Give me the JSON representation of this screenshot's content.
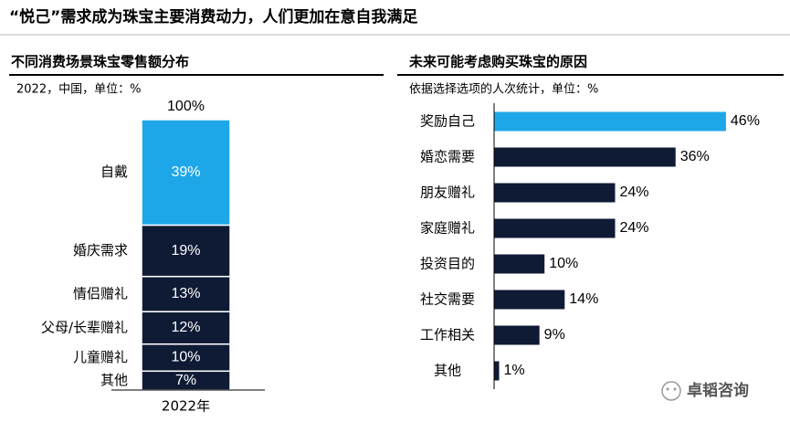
{
  "title": "“悦己”需求成为珠宝主要消费动力，人们更加在意自我满足",
  "watermark": "卓韬咨询",
  "chart_data": [
    {
      "type": "stacked_bar",
      "title": "不同消费场景珠宝零售额分布",
      "subtitle": "2022，中国，单位：%",
      "categories": [
        "2022年"
      ],
      "ylim": [
        0,
        100
      ],
      "total": {
        "value": 100,
        "label": "100%"
      },
      "series": [
        {
          "name": "其他",
          "color": "#0f1b35",
          "values": [
            7
          ],
          "value_labels": [
            "7%"
          ]
        },
        {
          "name": "儿童赠礼",
          "color": "#0f1b35",
          "values": [
            10
          ],
          "value_labels": [
            "10%"
          ]
        },
        {
          "name": "父母/长辈赠礼",
          "color": "#0f1b35",
          "values": [
            12
          ],
          "value_labels": [
            "12%"
          ]
        },
        {
          "name": "情侣赠礼",
          "color": "#0f1b35",
          "values": [
            13
          ],
          "value_labels": [
            "13%"
          ]
        },
        {
          "name": "婚庆需求",
          "color": "#0f1b35",
          "values": [
            19
          ],
          "value_labels": [
            "19%"
          ]
        },
        {
          "name": "自戴",
          "color": "#1ea7e8",
          "values": [
            39
          ],
          "value_labels": [
            "39%"
          ]
        }
      ]
    },
    {
      "type": "hbar",
      "title": "未来可能考虑购买珠宝的原因",
      "subtitle": "依据选择选项的人次统计，单位：%",
      "categories": [
        "奖励自己",
        "婚恋需要",
        "朋友赠礼",
        "家庭赠礼",
        "投资目的",
        "社交需要",
        "工作相关",
        "其他"
      ],
      "values": [
        46,
        36,
        24,
        24,
        10,
        14,
        9,
        1
      ],
      "value_labels": [
        "46%",
        "36%",
        "24%",
        "24%",
        "10%",
        "14%",
        "9%",
        "1%"
      ],
      "colors": [
        "#1ea7e8",
        "#0f1b35",
        "#0f1b35",
        "#0f1b35",
        "#0f1b35",
        "#0f1b35",
        "#0f1b35",
        "#0f1b35"
      ],
      "xlim": [
        0,
        50
      ]
    }
  ]
}
